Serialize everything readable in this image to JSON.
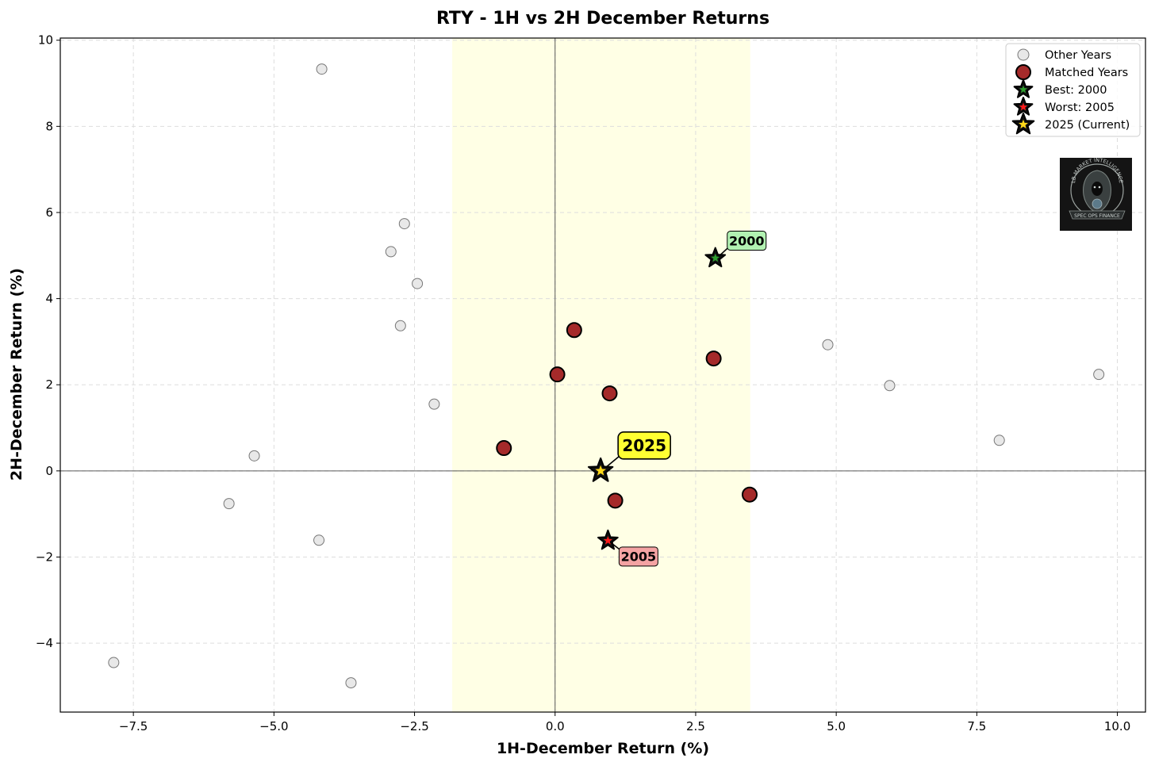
{
  "chart_data": {
    "type": "scatter",
    "title": "RTY - 1H vs 2H December Returns",
    "xlabel": "1H-December Return (%)",
    "ylabel": "2H-December Return (%)",
    "xlim": [
      -8.8,
      10.5
    ],
    "ylim": [
      -5.6,
      10.05
    ],
    "xticks": [
      -7.5,
      -5.0,
      -2.5,
      0.0,
      2.5,
      5.0,
      7.5,
      10.0
    ],
    "xtick_labels": [
      "−7.5",
      "−5.0",
      "−2.5",
      "0.0",
      "2.5",
      "5.0",
      "7.5",
      "10.0"
    ],
    "yticks": [
      -4,
      -2,
      0,
      2,
      4,
      6,
      8,
      10
    ],
    "ytick_labels": [
      "−4",
      "−2",
      "0",
      "2",
      "4",
      "6",
      "8",
      "10"
    ],
    "grid": true,
    "legend_position": "top-right",
    "highlight_band_x": [
      -1.83,
      3.47
    ],
    "series": [
      {
        "name": "Other Years",
        "marker": "circle",
        "color": "#e8e8e8",
        "points": [
          {
            "x": -4.15,
            "y": 9.33
          },
          {
            "x": -2.68,
            "y": 5.74
          },
          {
            "x": -2.92,
            "y": 5.09
          },
          {
            "x": -2.45,
            "y": 4.35
          },
          {
            "x": -2.75,
            "y": 3.37
          },
          {
            "x": -2.15,
            "y": 1.55
          },
          {
            "x": -5.35,
            "y": 0.35
          },
          {
            "x": -5.8,
            "y": -0.76
          },
          {
            "x": -4.2,
            "y": -1.61
          },
          {
            "x": -7.85,
            "y": -4.45
          },
          {
            "x": -3.63,
            "y": -4.92
          },
          {
            "x": 4.85,
            "y": 2.93
          },
          {
            "x": 5.95,
            "y": 1.98
          },
          {
            "x": 7.9,
            "y": 0.71
          },
          {
            "x": 9.67,
            "y": 2.24
          }
        ]
      },
      {
        "name": "Matched Years",
        "marker": "circle",
        "color": "#a52a2a",
        "points": [
          {
            "x": 0.34,
            "y": 3.27
          },
          {
            "x": 0.04,
            "y": 2.24
          },
          {
            "x": 0.97,
            "y": 1.8
          },
          {
            "x": 2.82,
            "y": 2.61
          },
          {
            "x": -0.91,
            "y": 0.53
          },
          {
            "x": 1.07,
            "y": -0.69
          },
          {
            "x": 3.46,
            "y": -0.55
          }
        ]
      },
      {
        "name": "Best: 2000",
        "marker": "star",
        "color": "#2e9e2e",
        "points": [
          {
            "x": 2.85,
            "y": 4.94
          }
        ]
      },
      {
        "name": "Worst: 2005",
        "marker": "star",
        "color": "#ff1a1a",
        "points": [
          {
            "x": 0.94,
            "y": -1.62
          }
        ]
      },
      {
        "name": "2025 (Current)",
        "marker": "star",
        "color": "#ffd81a",
        "points": [
          {
            "x": 0.81,
            "y": 0.0
          }
        ]
      }
    ],
    "annotations": [
      {
        "text": "2000",
        "x": 2.85,
        "y": 4.94,
        "box_color": "#b2f2b2",
        "size": "small"
      },
      {
        "text": "2005",
        "x": 0.94,
        "y": -1.62,
        "box_color": "#f4a3a3",
        "size": "small"
      },
      {
        "text": "2025",
        "x": 0.81,
        "y": 0.0,
        "box_color": "#ffff33",
        "size": "large"
      }
    ]
  },
  "logo": {
    "top_text": "LB MARKET INTELLIGENCE",
    "bottom_text": "SPEC OPS FINANCE"
  }
}
